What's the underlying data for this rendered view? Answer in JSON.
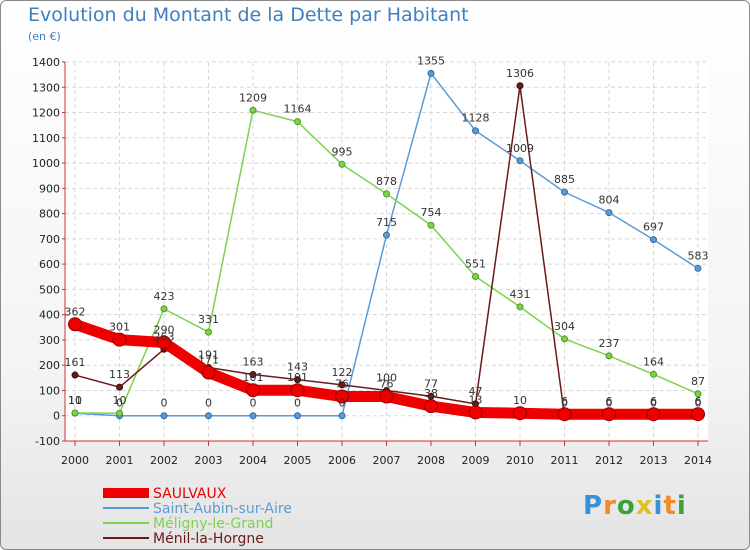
{
  "header": {
    "title": "Evolution du Montant de la Dette par Habitant",
    "subtitle": "(en €)"
  },
  "logo": {
    "text": "Proxiti",
    "letter_colors": [
      "#3a8fd8",
      "#f08a2a",
      "#3aa23a",
      "#e0c020",
      "#3a8fd8",
      "#f08a2a",
      "#3aa23a"
    ]
  },
  "chart_data": {
    "type": "line",
    "title": "Evolution du Montant de la Dette par Habitant",
    "ylabel": "(en €)",
    "xlabel": "",
    "x": [
      "2000",
      "2001",
      "2002",
      "2003",
      "2004",
      "2005",
      "2006",
      "2007",
      "2008",
      "2009",
      "2010",
      "2011",
      "2012",
      "2013",
      "2014"
    ],
    "ylim": [
      -100,
      1400
    ],
    "yticks": [
      -100,
      0,
      100,
      200,
      300,
      400,
      500,
      600,
      700,
      800,
      900,
      1000,
      1100,
      1200,
      1300,
      1400
    ],
    "grid": true,
    "series": [
      {
        "name": "SAULVAUX",
        "color": "#ee0000",
        "values": [
          362,
          301,
          290,
          171,
          101,
          101,
          76,
          76,
          38,
          13,
          10,
          6,
          6,
          6,
          6
        ]
      },
      {
        "name": "Saint-Aubin-sur-Aire",
        "color": "#5b9bd5",
        "values": [
          10,
          0,
          0,
          0,
          0,
          0,
          0,
          715,
          1355,
          1128,
          1009,
          885,
          804,
          697,
          583
        ]
      },
      {
        "name": "Méligny-le-Grand",
        "color": "#7cd34b",
        "values": [
          11,
          10,
          423,
          331,
          1209,
          1164,
          995,
          878,
          754,
          551,
          431,
          304,
          237,
          164,
          87
        ]
      },
      {
        "name": "Ménil-la-Horgne",
        "color": "#6b1a1a",
        "values": [
          161,
          113,
          263,
          191,
          163,
          143,
          122,
          100,
          77,
          47,
          1306,
          0,
          0,
          0,
          0
        ]
      }
    ]
  }
}
